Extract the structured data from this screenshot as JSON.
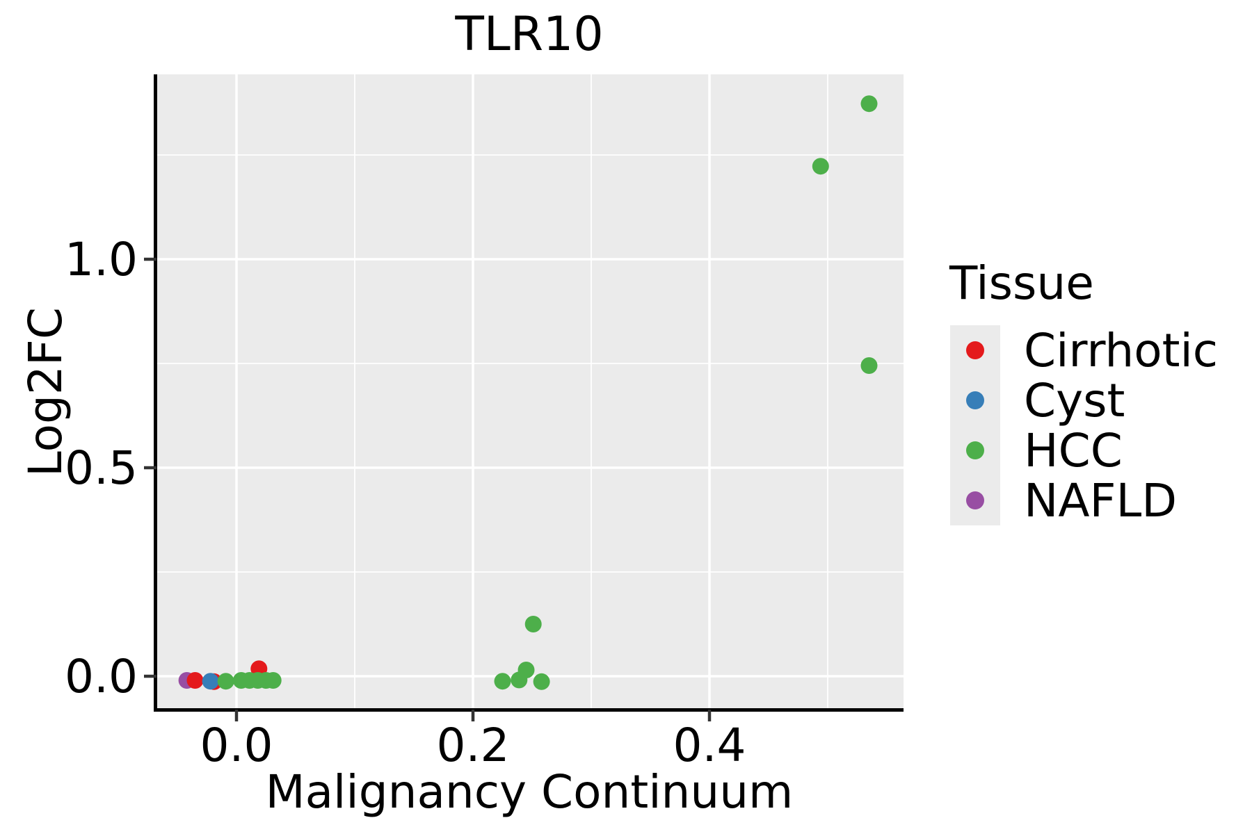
{
  "title": "TLR10",
  "axes": {
    "x": {
      "label": "Malignancy Continuum",
      "ticks": [
        0.0,
        0.2,
        0.4
      ],
      "tick_labels": [
        "0.0",
        "0.2",
        "0.4"
      ],
      "minor_ticks": [
        0.1,
        0.3,
        0.5
      ],
      "domain": [
        -0.069,
        0.564
      ]
    },
    "y": {
      "label": "Log2FC",
      "ticks": [
        0.0,
        0.5,
        1.0
      ],
      "tick_labels": [
        "0.0",
        "0.5",
        "1.0"
      ],
      "minor_ticks": [
        0.25,
        0.75,
        1.25
      ],
      "domain": [
        -0.08,
        1.443
      ]
    }
  },
  "legend": {
    "title": "Tissue",
    "items": [
      {
        "label": "Cirrhotic",
        "color": "#E41A1C"
      },
      {
        "label": "Cyst",
        "color": "#377EB8"
      },
      {
        "label": "HCC",
        "color": "#4DAF4A"
      },
      {
        "label": "NAFLD",
        "color": "#984EA3"
      }
    ]
  },
  "colors": {
    "panel_background": "#EBEBEB",
    "gridline": "#FFFFFF",
    "spine": "#000000",
    "tick": "#333333",
    "cirrhotic": "#E41A1C",
    "cyst": "#377EB8",
    "hcc": "#4DAF4A",
    "nafld": "#984EA3"
  },
  "chart_data": {
    "type": "scatter",
    "title": "TLR10",
    "xlabel": "Malignancy Continuum",
    "ylabel": "Log2FC",
    "xlim": [
      -0.069,
      0.564
    ],
    "ylim": [
      -0.08,
      1.443
    ],
    "grid": "white major+minor gridlines on gray panel",
    "legend_title": "Tissue",
    "legend_position": "right",
    "series": [
      {
        "name": "NAFLD",
        "color": "#984EA3",
        "points": [
          [
            -0.042,
            -0.01
          ]
        ]
      },
      {
        "name": "Cirrhotic",
        "color": "#E41A1C",
        "points": [
          [
            -0.035,
            -0.01
          ],
          [
            -0.019,
            -0.013
          ],
          [
            0.019,
            0.018
          ]
        ]
      },
      {
        "name": "Cyst",
        "color": "#377EB8",
        "points": [
          [
            -0.022,
            -0.012
          ]
        ]
      },
      {
        "name": "HCC",
        "color": "#4DAF4A",
        "points": [
          [
            -0.009,
            -0.012
          ],
          [
            0.004,
            -0.01
          ],
          [
            0.011,
            -0.01
          ],
          [
            0.018,
            -0.01
          ],
          [
            0.025,
            -0.01
          ],
          [
            0.031,
            -0.01
          ],
          [
            0.225,
            -0.012
          ],
          [
            0.239,
            -0.009
          ],
          [
            0.245,
            0.015
          ],
          [
            0.251,
            0.125
          ],
          [
            0.258,
            -0.013
          ],
          [
            0.494,
            1.223
          ],
          [
            0.535,
            1.373
          ],
          [
            0.535,
            0.745
          ]
        ]
      }
    ]
  }
}
